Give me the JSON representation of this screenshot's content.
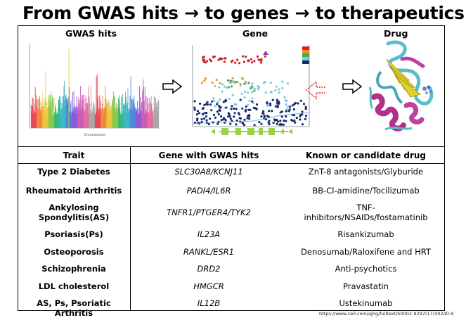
{
  "title": "From GWAS hits → to genes → to therapeutics",
  "panels": {
    "gwas": "GWAS hits",
    "gene": "Gene",
    "drug": "Drug"
  },
  "gwas_plot": {
    "xlabel": "Chromosome"
  },
  "table": {
    "headers": [
      "Trait",
      "Gene with GWAS hits",
      "Known or candidate drug"
    ],
    "rows": [
      {
        "trait": "Type 2 Diabetes",
        "gene": "SLC30A8/KCNJ11",
        "drug": "ZnT-8 antagonists/Glyburide"
      },
      {
        "trait": "Rheumatoid Arthritis",
        "gene": "PADI4/IL6R",
        "drug": "BB-Cl-amidine/Tocilizumab"
      },
      {
        "trait": "Ankylosing Spondylitis(AS)",
        "trait_l1": "Ankylosing",
        "trait_l2": "Spondylitis(AS)",
        "gene": "TNFR1/PTGER4/TYK2",
        "drug": "TNF-inhibitors/NSAIDs/fostamatinib",
        "drug_l1": "TNF-",
        "drug_l2": "inhibitors/NSAIDs/fostamatinib"
      },
      {
        "trait": "Psoriasis(Ps)",
        "gene": "IL23A",
        "drug": "Risankizumab"
      },
      {
        "trait": "Osteoporosis",
        "gene": "RANKL/ESR1",
        "drug": "Denosumab/Raloxifene and HRT"
      },
      {
        "trait": "Schizophrenia",
        "gene": "DRD2",
        "drug": "Anti-psychotics"
      },
      {
        "trait": "LDL cholesterol",
        "gene": "HMGCR",
        "drug": "Pravastatin"
      },
      {
        "trait": "AS, Ps, Psoriatic Arthritis",
        "gene": "IL12B",
        "drug": "Ustekinumab"
      }
    ]
  },
  "source": "https://www.cell.com/ajhg/fulltext/S0002-9297(17)30240-9",
  "colors": {
    "accent_red": "#e02020",
    "navy": "#1a2a6c",
    "green": "#9ad04a",
    "magenta": "#b0308a"
  }
}
